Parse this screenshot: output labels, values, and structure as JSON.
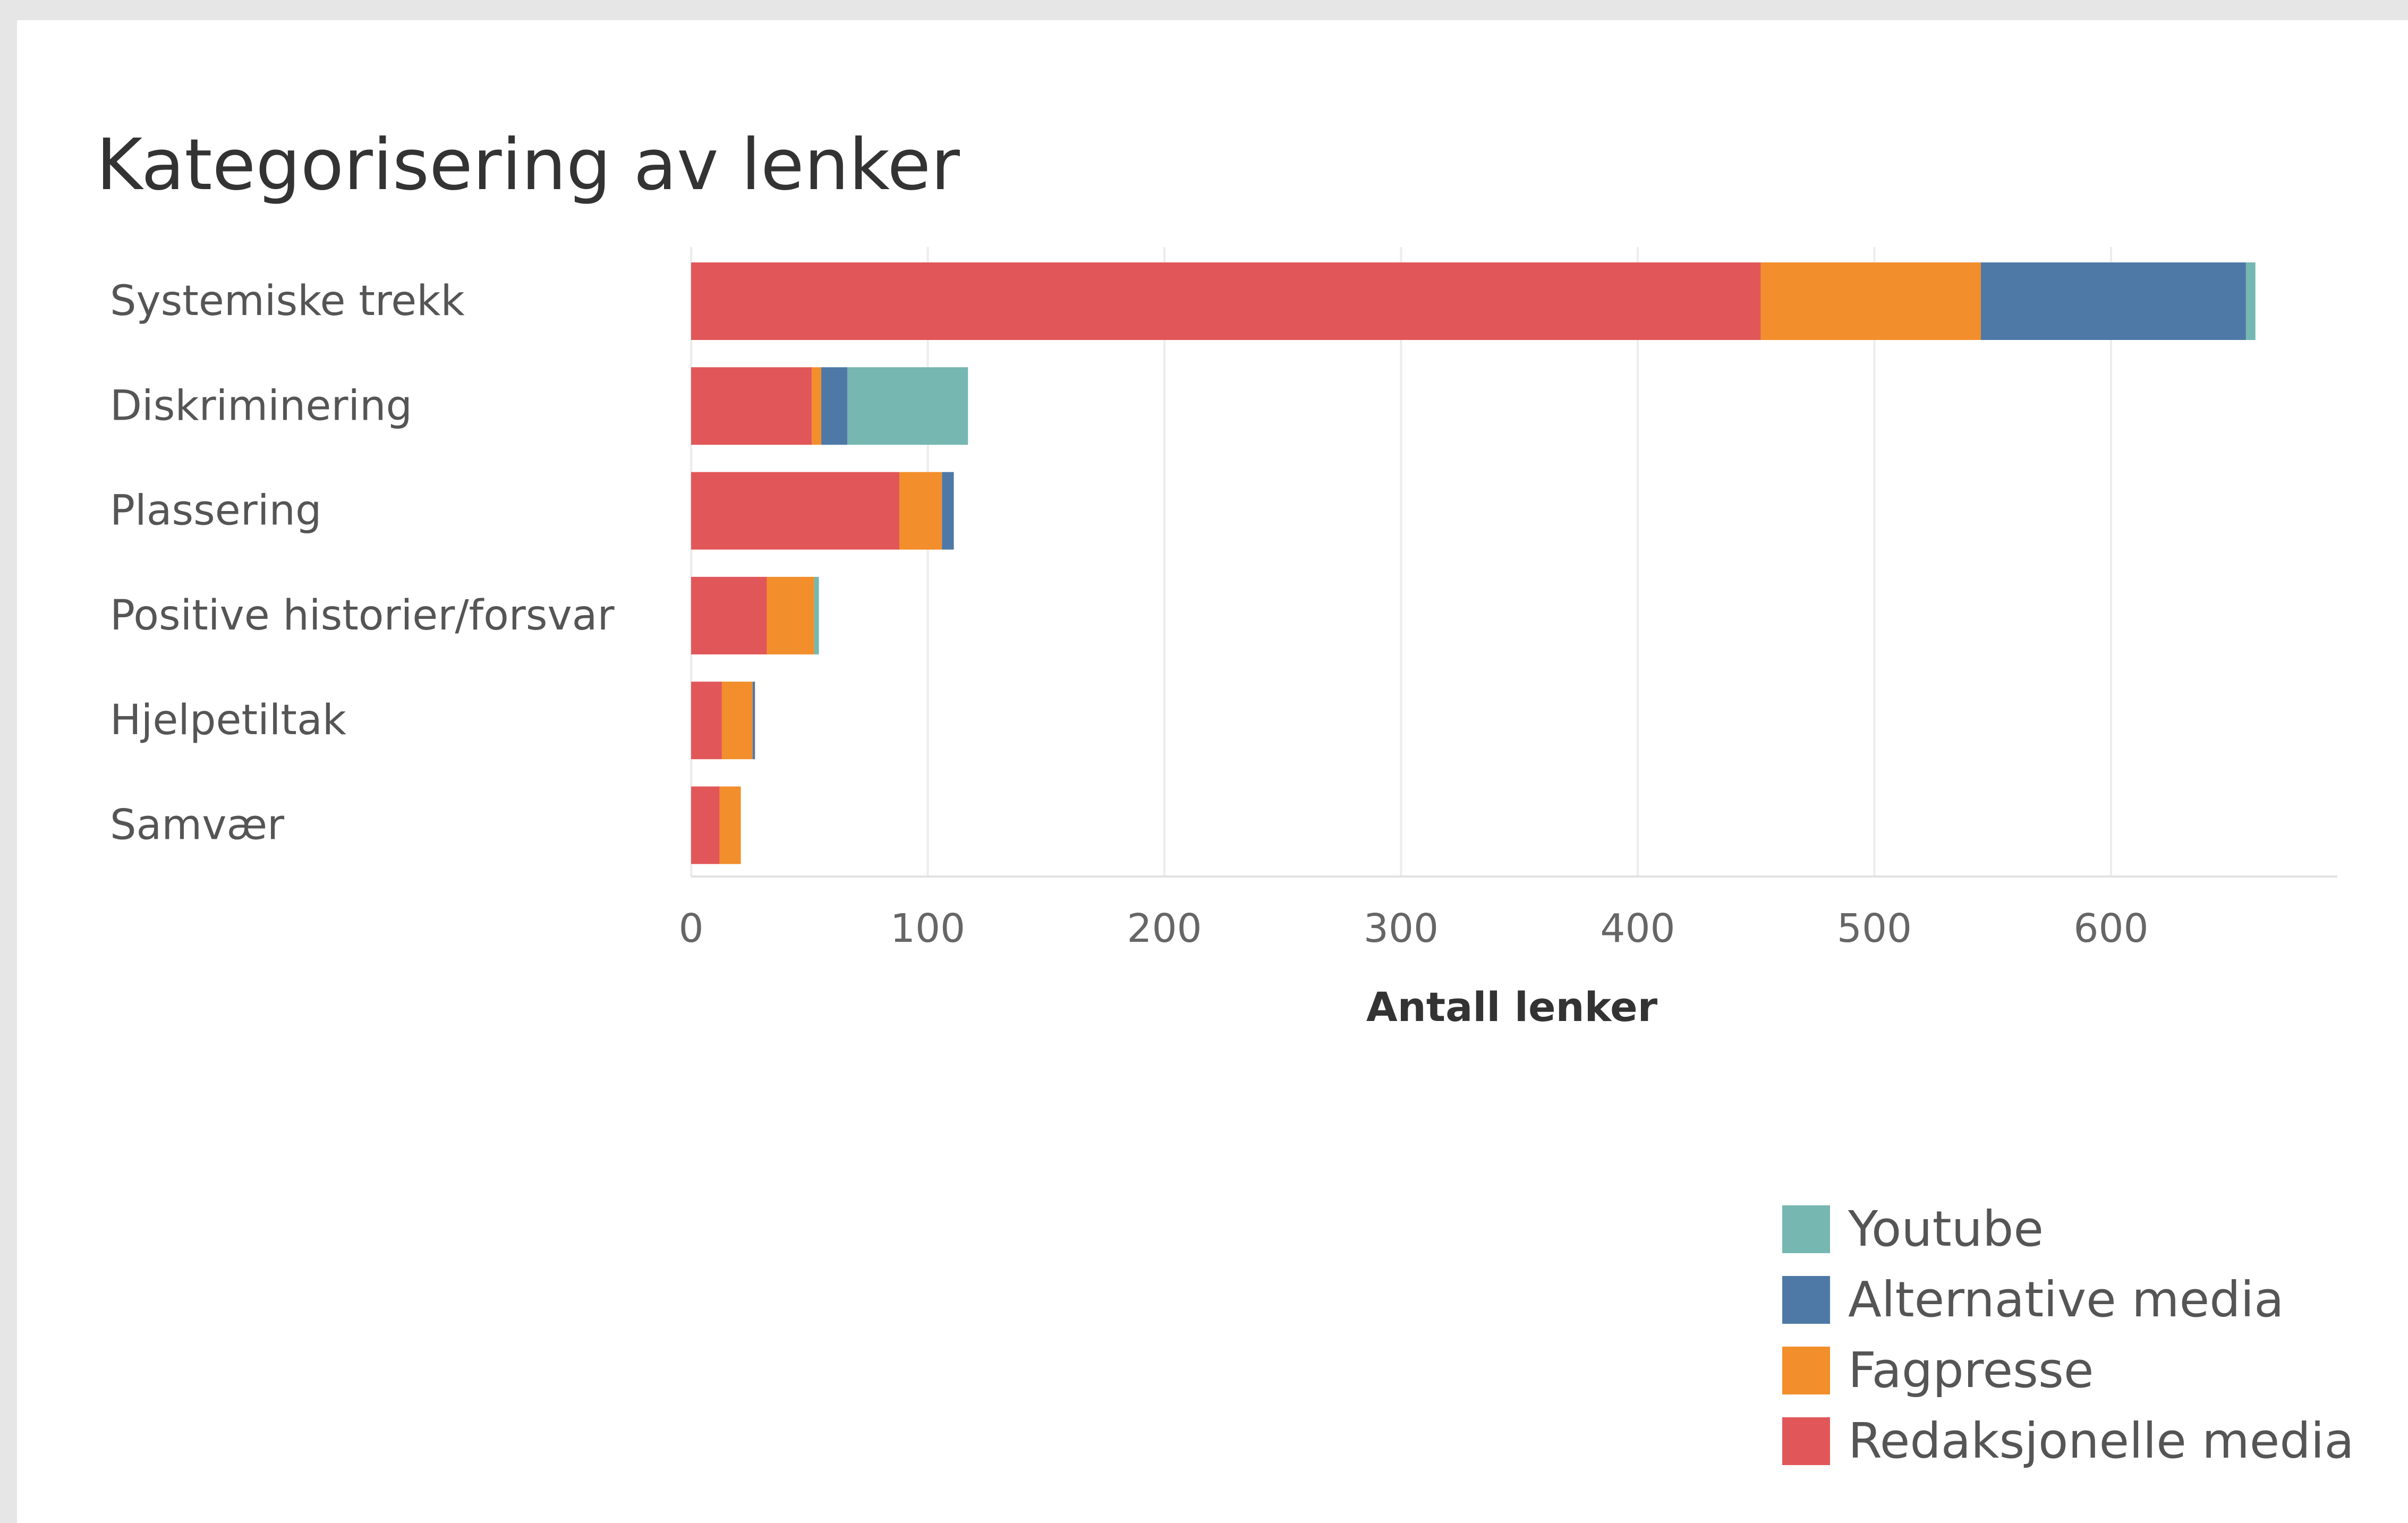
{
  "chart_data": {
    "type": "bar",
    "orientation": "horizontal",
    "stacked": true,
    "title": "Kategorisering av lenker",
    "xlabel": "Antall lenker",
    "ylabel": "",
    "xlim": [
      0,
      690
    ],
    "xticks": [
      0,
      100,
      200,
      300,
      400,
      500,
      600
    ],
    "grid": true,
    "legend_position": "bottom-right",
    "categories": [
      "Systemiske trekk",
      "Diskriminering",
      "Plassering",
      "Positive historier/forsvar",
      "Hjelpetiltak",
      "Samvær"
    ],
    "series": [
      {
        "name": "Redaksjonelle media",
        "color": "#e15759",
        "values": [
          452,
          51,
          88,
          32,
          13,
          12
        ]
      },
      {
        "name": "Fagpresse",
        "color": "#f28e2b",
        "values": [
          93,
          4,
          18,
          20,
          13,
          9
        ]
      },
      {
        "name": "Alternative media",
        "color": "#4e79a7",
        "values": [
          112,
          11,
          5,
          0,
          1,
          0
        ]
      },
      {
        "name": "Youtube",
        "color": "#76b7b2",
        "values": [
          4,
          51,
          0,
          2,
          0,
          0
        ]
      }
    ],
    "legend_order": [
      "Youtube",
      "Alternative media",
      "Fagpresse",
      "Redaksjonelle media"
    ]
  }
}
